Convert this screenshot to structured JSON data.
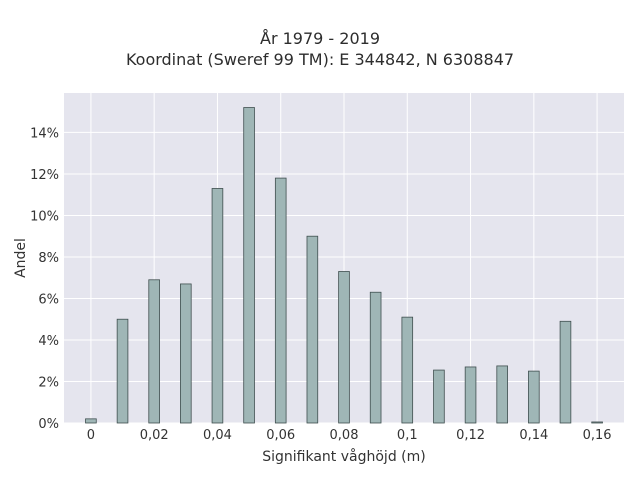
{
  "chart_data": {
    "type": "bar",
    "title_line1": "År 1979 - 2019",
    "title_line2": "Koordinat (Sweref 99 TM): E 344842, N 6308847",
    "xlabel": "Signifikant våghöjd (m)",
    "ylabel": "Andel",
    "x": [
      0,
      0.01,
      0.02,
      0.03,
      0.04,
      0.05,
      0.06,
      0.07,
      0.08,
      0.09,
      0.1,
      0.11,
      0.12,
      0.13,
      0.14,
      0.15,
      0.16
    ],
    "values": [
      0.2,
      5.0,
      6.9,
      6.7,
      11.3,
      15.2,
      11.8,
      9.0,
      7.3,
      6.3,
      5.1,
      2.55,
      2.7,
      2.75,
      2.5,
      4.9,
      0.05
    ],
    "xlim": [
      -0.0085,
      0.1685
    ],
    "ylim": [
      0,
      15.9
    ],
    "x_ticks": [
      0,
      0.02,
      0.04,
      0.06,
      0.08,
      0.1,
      0.12,
      0.14,
      0.16
    ],
    "x_tick_labels": [
      "0",
      "0,02",
      "0,04",
      "0,06",
      "0,08",
      "0,1",
      "0,12",
      "0,14",
      "0,16"
    ],
    "y_ticks": [
      0,
      2,
      4,
      6,
      8,
      10,
      12,
      14
    ],
    "y_tick_labels": [
      "0%",
      "2%",
      "4%",
      "6%",
      "8%",
      "10%",
      "12%",
      "14%"
    ],
    "grid": true,
    "colors": {
      "bar_fill": "#9fb6b6",
      "bar_stroke": "#3f4f4f",
      "plot_bg": "#e5e5ee",
      "grid": "#ffffff"
    }
  }
}
